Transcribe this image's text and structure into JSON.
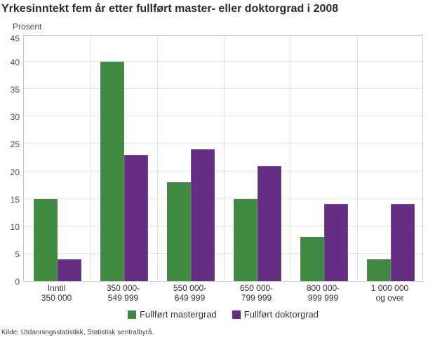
{
  "title": "Yrkesinntekt fem år etter fullført master- eller doktorgrad i 2008",
  "source": "Kilde: Utdanningsstatistikk, Statistisk sentralbyrå.",
  "colors": {
    "master_green": "#3e8a40",
    "doctor_purple": "#672c84",
    "gridline": "#e0e0e0",
    "plot_border": "#c9c9c9",
    "title_text": "#2b2b2b",
    "axis_text": "#4d4d4d"
  },
  "chart_data": {
    "type": "bar",
    "title": "Yrkesinntekt fem år etter fullført master- eller doktorgrad i 2008",
    "xlabel": "",
    "ylabel": "Prosent",
    "ylim": [
      0,
      45
    ],
    "ytick_step": 5,
    "grid": true,
    "legend_position": "bottom",
    "categories": [
      "Inntil 350 000",
      "350 000-549 999",
      "550 000-649 999",
      "650 000-799 999",
      "800 000-999 999",
      "1 000 000 og over"
    ],
    "category_label_lines": [
      [
        "Inntil",
        "350 000"
      ],
      [
        "350 000-",
        "549 999"
      ],
      [
        "550 000-",
        "649 999"
      ],
      [
        "650 000-",
        "799 999"
      ],
      [
        "800 000-",
        "999 999"
      ],
      [
        "1 000 000",
        "og over"
      ]
    ],
    "series": [
      {
        "name": "Fullført mastergrad",
        "color": "#3e8a40",
        "values": [
          15,
          40,
          18,
          15,
          8,
          4
        ]
      },
      {
        "name": "Fullført doktorgrad",
        "color": "#672c84",
        "values": [
          4,
          23,
          24,
          21,
          14,
          14
        ]
      }
    ]
  }
}
